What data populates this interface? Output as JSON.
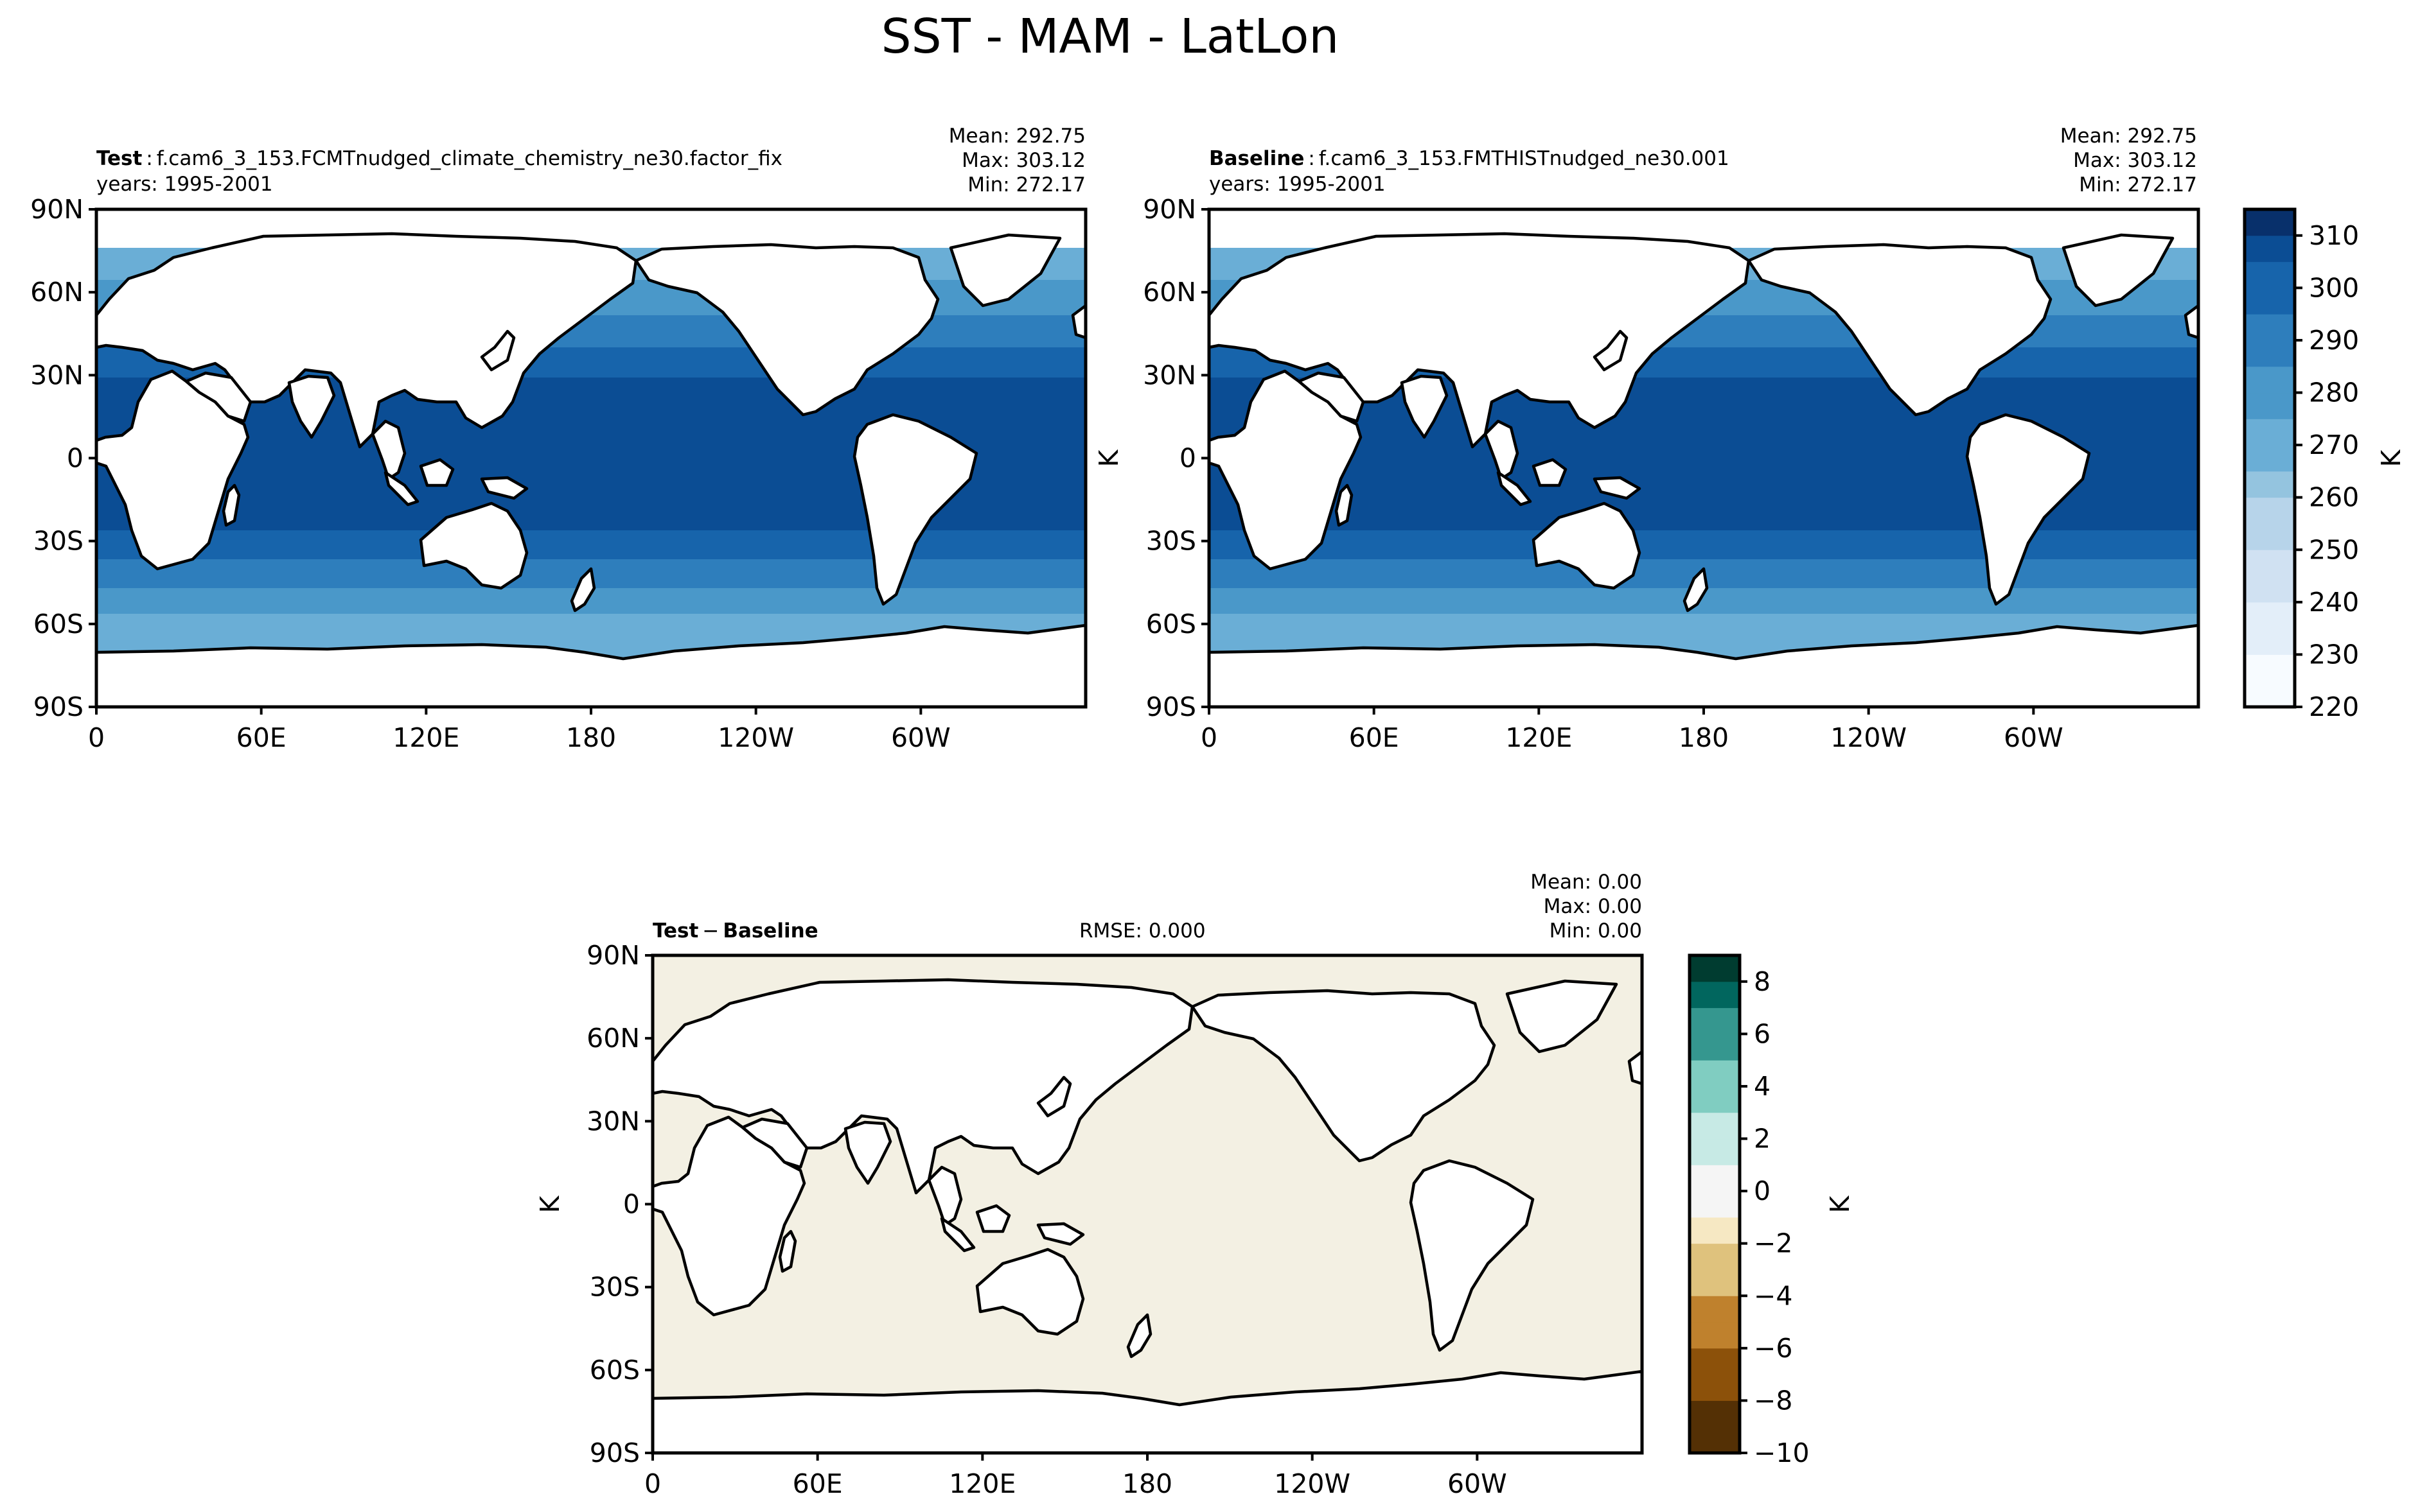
{
  "figure": {
    "title": "SST - MAM - LatLon",
    "axis_unit_label": "K"
  },
  "panels": {
    "test": {
      "bold_label": "Test",
      "case_name": "f.cam6_3_153.FCMTnudged_climate_chemistry_ne30.factor_fix",
      "years": "years: 1995-2001",
      "mean": "Mean: 292.75",
      "max": "Max: 303.12",
      "min": "Min: 272.17"
    },
    "baseline": {
      "bold_label": "Baseline",
      "case_name": "f.cam6_3_153.FMTHISTnudged_ne30.001",
      "years": "years: 1995-2001",
      "mean": "Mean: 292.75",
      "max": "Max: 303.12",
      "min": "Min: 272.17"
    },
    "diff": {
      "bold_label_a": "Test",
      "minus": "−",
      "bold_label_b": "Baseline",
      "rmse": "RMSE: 0.000",
      "mean": "Mean:  0.00",
      "max": "Max:  0.00",
      "min": "Min:  0.00"
    }
  },
  "colors": {
    "land": "#ffffff",
    "coastline": "#000000",
    "sst_ramp": [
      "#f7fbff",
      "#e3eef9",
      "#d0e1f2",
      "#b7d4ea",
      "#94c4df",
      "#6aaed6",
      "#4a98c9",
      "#2e7ebc",
      "#1764ab",
      "#0b4d94",
      "#08306b"
    ],
    "diff_ramp": [
      "#543005",
      "#8c510a",
      "#bf812d",
      "#dfc27d",
      "#f6e8c3",
      "#f5f5f5",
      "#c7eae5",
      "#80cdc1",
      "#35978f",
      "#01665e",
      "#003c30"
    ],
    "diff_fill": "#f3f0e3"
  },
  "chart_data": [
    {
      "type": "heatmap",
      "name": "Test",
      "projection": "PlateCarree (lat-lon), central longitude 180",
      "variable": "SST",
      "season": "MAM",
      "xticks": [
        "0",
        "60E",
        "120E",
        "180",
        "120W",
        "60W"
      ],
      "yticks": [
        "90N",
        "60N",
        "30N",
        "0",
        "30S",
        "60S",
        "90S"
      ],
      "xlim": [
        0,
        360
      ],
      "ylim": [
        -90,
        90
      ],
      "stats": {
        "mean": 292.75,
        "max": 303.12,
        "min": 272.17
      },
      "years": [
        1995,
        2001
      ],
      "colormap": "Blues"
    },
    {
      "type": "heatmap",
      "name": "Baseline",
      "projection": "PlateCarree (lat-lon), central longitude 180",
      "variable": "SST",
      "season": "MAM",
      "xticks": [
        "0",
        "60E",
        "120E",
        "180",
        "120W",
        "60W"
      ],
      "yticks": [
        "90N",
        "60N",
        "30N",
        "0",
        "30S",
        "60S",
        "90S"
      ],
      "xlim": [
        0,
        360
      ],
      "ylim": [
        -90,
        90
      ],
      "stats": {
        "mean": 292.75,
        "max": 303.12,
        "min": 272.17
      },
      "years": [
        1995,
        2001
      ],
      "colormap": "Blues",
      "colorbar": {
        "label": "K",
        "range": [
          220,
          315
        ],
        "ticks": [
          220,
          230,
          240,
          250,
          260,
          270,
          280,
          290,
          300,
          310
        ],
        "tick_labels": [
          "220",
          "230",
          "240",
          "250",
          "260",
          "270",
          "280",
          "290",
          "300",
          "310"
        ],
        "levels": 19
      }
    },
    {
      "type": "heatmap",
      "name": "Test − Baseline",
      "projection": "PlateCarree (lat-lon), central longitude 180",
      "xticks": [
        "0",
        "60E",
        "120E",
        "180",
        "120W",
        "60W"
      ],
      "yticks": [
        "90N",
        "60N",
        "30N",
        "0",
        "30S",
        "60S",
        "90S"
      ],
      "xlim": [
        0,
        360
      ],
      "ylim": [
        -90,
        90
      ],
      "stats": {
        "mean": 0.0,
        "max": 0.0,
        "min": 0.0,
        "rmse": 0.0
      },
      "colormap": "BrBG",
      "colorbar": {
        "label": "K",
        "range": [
          -10,
          9
        ],
        "ticks": [
          -10,
          -8,
          -6,
          -4,
          -2,
          0,
          2,
          4,
          6,
          8
        ],
        "tick_labels": [
          "−10",
          "−8",
          "−6",
          "−4",
          "−2",
          "0",
          "2",
          "4",
          "6",
          "8"
        ],
        "levels": 19
      }
    }
  ]
}
